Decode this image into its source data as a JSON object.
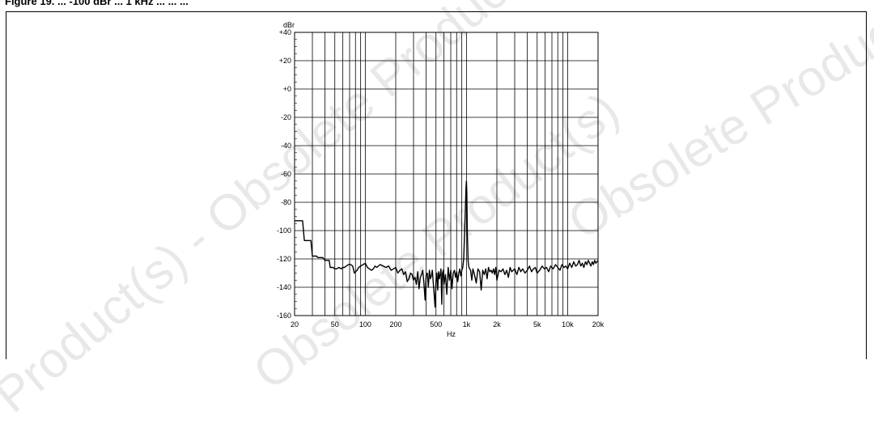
{
  "figure": {
    "caption": "Figure 19. ... -100 dBr ... 1 kHz ... ...  ..."
  },
  "watermarks": {
    "texts": [
      "Obsolete Product(s)",
      "Obsolete Product(s)",
      "Product(s) - Obsolete Product(s)"
    ],
    "color": "#cfcfcf"
  },
  "chart_data": {
    "type": "line",
    "title": "",
    "ylabel": "dBr",
    "xlabel": "Hz",
    "xscale": "log",
    "xlim": [
      20,
      20000
    ],
    "ylim": [
      -160,
      40
    ],
    "grid": true,
    "xticks": [
      {
        "value": 20,
        "label": "20"
      },
      {
        "value": 50,
        "label": "50"
      },
      {
        "value": 100,
        "label": "100"
      },
      {
        "value": 200,
        "label": "200"
      },
      {
        "value": 500,
        "label": "500"
      },
      {
        "value": 1000,
        "label": "1k"
      },
      {
        "value": 2000,
        "label": "2k"
      },
      {
        "value": 5000,
        "label": "5k"
      },
      {
        "value": 10000,
        "label": "10k"
      },
      {
        "value": 20000,
        "label": "20k"
      }
    ],
    "yticks": [
      {
        "value": 40,
        "label": "+40"
      },
      {
        "value": 20,
        "label": "+20"
      },
      {
        "value": 0,
        "label": "+0"
      },
      {
        "value": -20,
        "label": "-20"
      },
      {
        "value": -40,
        "label": "-40"
      },
      {
        "value": -60,
        "label": "-60"
      },
      {
        "value": -80,
        "label": "-80"
      },
      {
        "value": -100,
        "label": "-100"
      },
      {
        "value": -120,
        "label": "-120"
      },
      {
        "value": -140,
        "label": "-140"
      },
      {
        "value": -160,
        "label": "-160"
      }
    ],
    "series": [
      {
        "color": "#000000",
        "x": [
          20,
          24,
          25,
          29,
          30,
          33,
          34,
          36,
          38,
          40,
          42,
          44,
          45,
          48,
          50,
          52,
          55,
          58,
          60,
          62,
          65,
          68,
          70,
          72,
          75,
          78,
          80,
          83,
          86,
          90,
          95,
          100,
          105,
          110,
          115,
          120,
          125,
          130,
          140,
          150,
          160,
          170,
          180,
          190,
          200,
          210,
          220,
          230,
          240,
          250,
          260,
          270,
          280,
          290,
          300,
          310,
          320,
          330,
          340,
          350,
          360,
          370,
          380,
          390,
          400,
          410,
          420,
          430,
          440,
          450,
          460,
          470,
          480,
          490,
          500,
          510,
          520,
          530,
          540,
          550,
          560,
          570,
          580,
          590,
          600,
          620,
          640,
          660,
          680,
          700,
          720,
          740,
          760,
          780,
          800,
          820,
          840,
          860,
          880,
          900,
          920,
          940,
          960,
          980,
          990,
          1000,
          1010,
          1020,
          1040,
          1060,
          1080,
          1100,
          1130,
          1160,
          1200,
          1250,
          1300,
          1350,
          1400,
          1450,
          1500,
          1550,
          1600,
          1650,
          1700,
          1750,
          1800,
          1850,
          1900,
          1950,
          2000,
          2100,
          2200,
          2300,
          2400,
          2500,
          2600,
          2700,
          2800,
          2900,
          3000,
          3150,
          3300,
          3450,
          3600,
          3800,
          4000,
          4200,
          4400,
          4600,
          4800,
          5000,
          5300,
          5600,
          5900,
          6200,
          6500,
          6800,
          7200,
          7600,
          8000,
          8400,
          8800,
          9200,
          9600,
          10000,
          10500,
          11000,
          11500,
          12000,
          12500,
          13000,
          13500,
          14000,
          14500,
          15000,
          15500,
          16000,
          16500,
          17000,
          17500,
          18000,
          18500,
          19000,
          19500,
          20000
        ],
        "y": [
          -93,
          -93,
          -107,
          -107,
          -118,
          -118,
          -119,
          -119,
          -119,
          -121,
          -121,
          -121,
          -126,
          -126,
          -127,
          -127,
          -126,
          -127,
          -126,
          -126,
          -125,
          -124,
          -124,
          -124,
          -125,
          -130,
          -129,
          -128,
          -126,
          -125,
          -124,
          -123,
          -126,
          -127,
          -128,
          -127,
          -125,
          -126,
          -124,
          -125,
          -126,
          -125,
          -128,
          -127,
          -126,
          -130,
          -128,
          -127,
          -131,
          -129,
          -136,
          -134,
          -130,
          -131,
          -135,
          -133,
          -138,
          -129,
          -141,
          -133,
          -131,
          -128,
          -137,
          -149,
          -131,
          -130,
          -140,
          -128,
          -134,
          -132,
          -128,
          -137,
          -145,
          -154,
          -136,
          -130,
          -142,
          -129,
          -134,
          -131,
          -127,
          -152,
          -130,
          -128,
          -138,
          -131,
          -145,
          -126,
          -135,
          -128,
          -141,
          -130,
          -128,
          -133,
          -129,
          -136,
          -130,
          -127,
          -132,
          -128,
          -126,
          -120,
          -100,
          -80,
          -70,
          -65,
          -75,
          -100,
          -122,
          -126,
          -127,
          -128,
          -135,
          -127,
          -131,
          -137,
          -127,
          -129,
          -142,
          -128,
          -131,
          -127,
          -134,
          -126,
          -129,
          -128,
          -130,
          -127,
          -131,
          -126,
          -135,
          -128,
          -129,
          -127,
          -131,
          -128,
          -133,
          -126,
          -129,
          -128,
          -127,
          -131,
          -126,
          -129,
          -127,
          -130,
          -128,
          -125,
          -129,
          -127,
          -126,
          -130,
          -128,
          -125,
          -127,
          -126,
          -129,
          -125,
          -127,
          -124,
          -126,
          -128,
          -124,
          -126,
          -125,
          -127,
          -123,
          -126,
          -122,
          -125,
          -124,
          -121,
          -125,
          -123,
          -126,
          -122,
          -124,
          -121,
          -123,
          -125,
          -122,
          -124,
          -121,
          -123,
          -122,
          -121
        ]
      }
    ]
  }
}
